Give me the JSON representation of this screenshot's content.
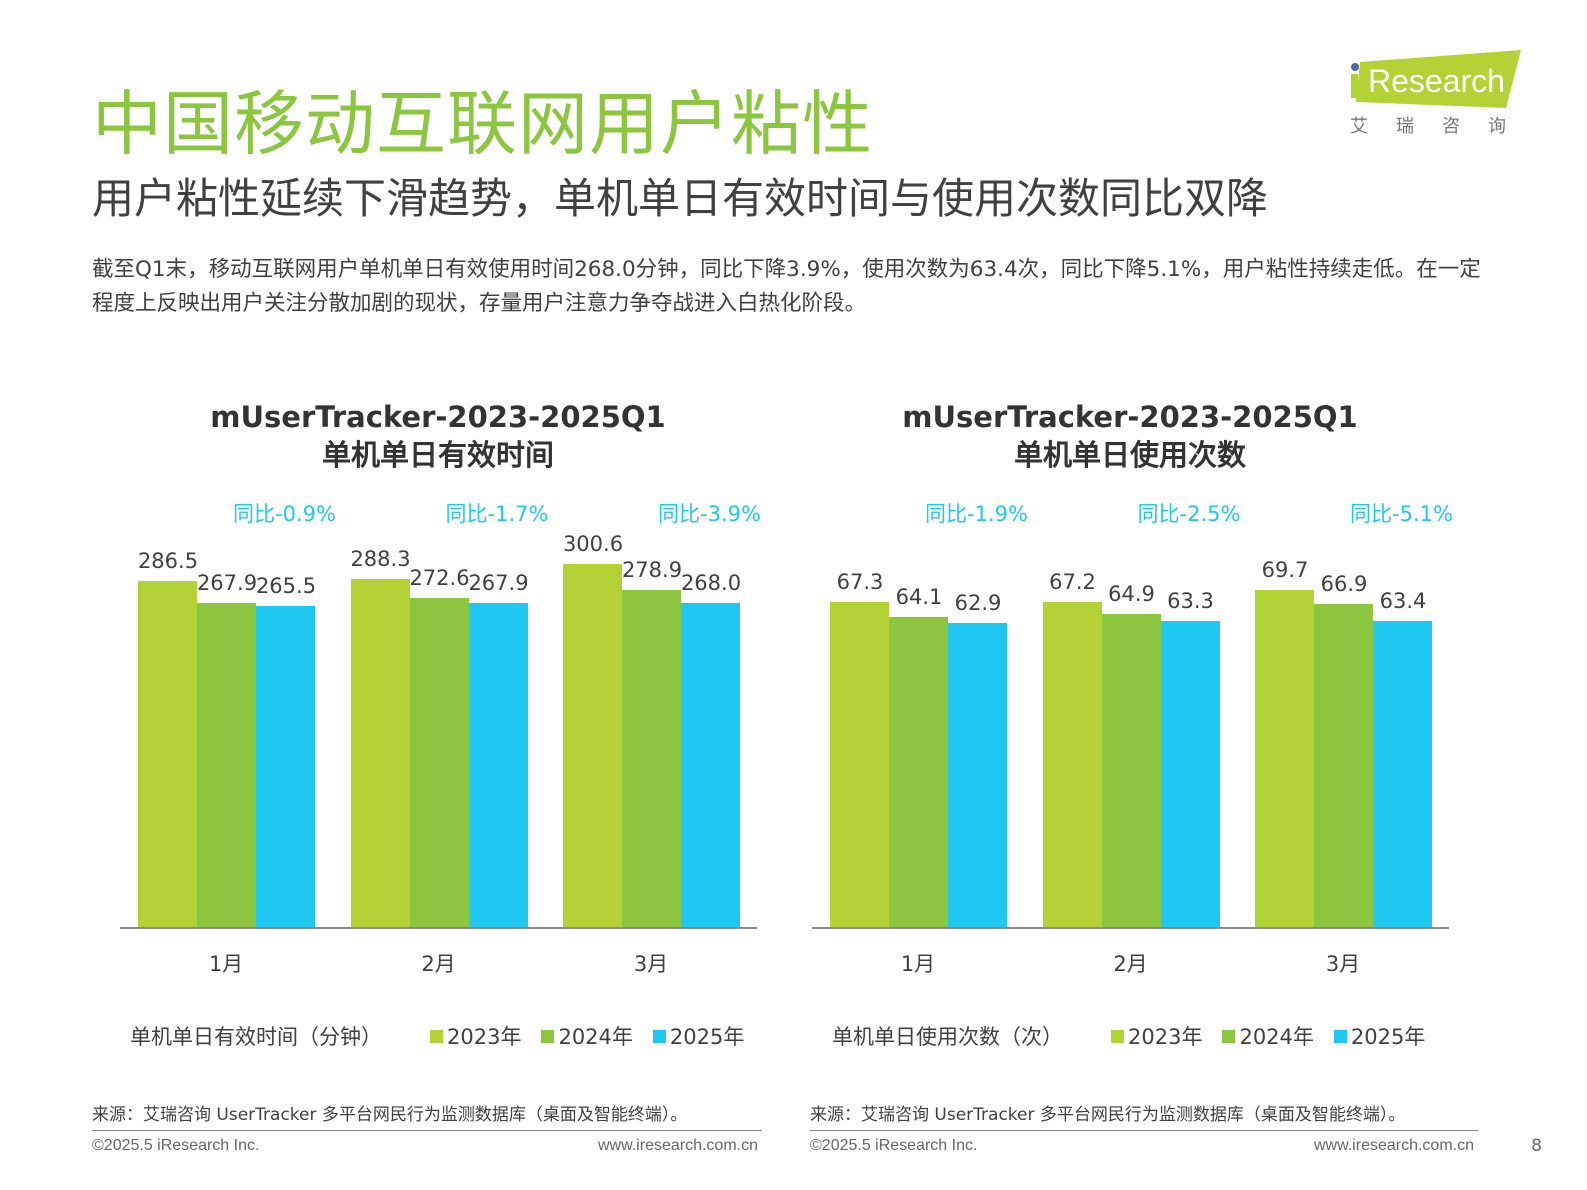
{
  "title": "中国移动互联网用户粘性",
  "subtitle": "用户粘性延续下滑趋势，单机单日有效时间与使用次数同比双降",
  "description": "截至Q1末，移动互联网用户单机单日有效使用时间268.0分钟，同比下降3.9%，使用次数为63.4次，同比下降5.1%，用户粘性持续走低。在一定程度上反映出用户关注分散加剧的现状，存量用户注意力争夺战进入白热化阶段。",
  "logo": {
    "text": "iResearch",
    "cn": "艾 瑞 咨 询",
    "color": "#b2d235"
  },
  "colors": {
    "2023": "#b2d235",
    "2024": "#8cc63f",
    "2025": "#1fc8f0",
    "yoy": "#1fc8f0"
  },
  "chart_data": [
    {
      "type": "bar",
      "title_line1": "mUserTracker-2023-2025Q1",
      "title_line2": "单机单日有效时间",
      "categories": [
        "1月",
        "2月",
        "3月"
      ],
      "series": [
        {
          "name": "2023年",
          "values": [
            286.5,
            288.3,
            300.6
          ]
        },
        {
          "name": "2024年",
          "values": [
            267.9,
            272.6,
            278.9
          ]
        },
        {
          "name": "2025年",
          "values": [
            265.5,
            267.9,
            268.0
          ]
        }
      ],
      "yoy_labels": [
        "同比-0.9%",
        "同比-1.7%",
        "同比-3.9%"
      ],
      "legend_title": "单机单日有效时间（分钟）",
      "legend_placement": "bottom",
      "ylim": [
        0,
        330
      ],
      "grid": false,
      "source": "来源：艾瑞咨询 UserTracker 多平台网民行为监测数据库（桌面及智能终端）。",
      "footer_left": "©2025.5 iResearch Inc.",
      "footer_right": "www.iresearch.com.cn"
    },
    {
      "type": "bar",
      "title_line1": "mUserTracker-2023-2025Q1",
      "title_line2": "单机单日使用次数",
      "categories": [
        "1月",
        "2月",
        "3月"
      ],
      "series": [
        {
          "name": "2023年",
          "values": [
            67.3,
            67.2,
            69.7
          ]
        },
        {
          "name": "2024年",
          "values": [
            64.1,
            64.9,
            66.9
          ]
        },
        {
          "name": "2025年",
          "values": [
            62.9,
            63.3,
            63.4
          ]
        }
      ],
      "yoy_labels": [
        "同比-1.9%",
        "同比-2.5%",
        "同比-5.1%"
      ],
      "legend_title": "单机单日使用次数（次）",
      "legend_placement": "bottom",
      "ylim": [
        0,
        72
      ],
      "grid": false,
      "source": "来源：艾瑞咨询 UserTracker 多平台网民行为监测数据库（桌面及智能终端）。",
      "footer_left": "©2025.5 iResearch Inc.",
      "footer_right": "www.iresearch.com.cn"
    }
  ],
  "page_number": "8"
}
